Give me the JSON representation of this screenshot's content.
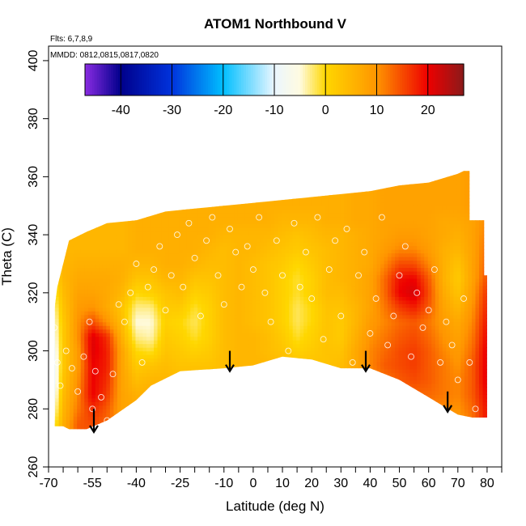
{
  "chart_data": {
    "type": "heatmap",
    "title": "ATOM1 Northbound V",
    "xlabel": "Latitude (deg N)",
    "ylabel": "Theta (C)",
    "annotation_flights": "Flts: 6,7,8,9",
    "annotation_dates": "MMDD: 0812,0815,0817,0820",
    "xlim": [
      -70,
      85
    ],
    "ylim": [
      260,
      405
    ],
    "x_tick_values": [
      -70,
      -55,
      -40,
      -25,
      -10,
      0,
      10,
      20,
      30,
      40,
      50,
      60,
      70,
      80
    ],
    "x_tick_labels": [
      "-70",
      "-55",
      "-40",
      "-25",
      "-10",
      "0",
      "10",
      "20",
      "30",
      "40",
      "50",
      "60",
      "70",
      "80"
    ],
    "x_minor_ticks": [
      -65,
      -60,
      -50,
      -45,
      -35,
      -30,
      -20,
      -15,
      -5,
      5,
      15,
      25,
      35,
      45,
      55,
      65,
      75,
      85
    ],
    "y_tick_values": [
      260,
      280,
      300,
      320,
      340,
      360,
      380,
      400
    ],
    "y_tick_labels": [
      "260",
      "280",
      "300",
      "320",
      "340",
      "360",
      "380",
      "400"
    ],
    "colorbar": {
      "range": [
        -47,
        27
      ],
      "tick_values": [
        -40,
        -30,
        -20,
        -10,
        0,
        10,
        20
      ],
      "tick_labels": [
        "-40",
        "-30",
        "-20",
        "-10",
        "0",
        "10",
        "20"
      ],
      "stops": [
        {
          "v": -47,
          "c": "#8a2be2"
        },
        {
          "v": -40,
          "c": "#00008b"
        },
        {
          "v": -30,
          "c": "#0033dd"
        },
        {
          "v": -20,
          "c": "#00bfff"
        },
        {
          "v": -10,
          "c": "#eaf6ff"
        },
        {
          "v": -5,
          "c": "#fffbe0"
        },
        {
          "v": 0,
          "c": "#ffd700"
        },
        {
          "v": 10,
          "c": "#ff9500"
        },
        {
          "v": 20,
          "c": "#ee0000"
        },
        {
          "v": 27,
          "c": "#8b1a1a"
        }
      ]
    },
    "field_upper_boundary": [
      [
        -68,
        314
      ],
      [
        -67,
        322
      ],
      [
        -65,
        330
      ],
      [
        -63,
        338
      ],
      [
        -57,
        341
      ],
      [
        -50,
        344
      ],
      [
        -40,
        345
      ],
      [
        -30,
        348
      ],
      [
        -20,
        349
      ],
      [
        -10,
        350
      ],
      [
        0,
        351
      ],
      [
        10,
        352
      ],
      [
        20,
        353
      ],
      [
        30,
        354
      ],
      [
        40,
        355
      ],
      [
        50,
        357
      ],
      [
        60,
        358
      ],
      [
        70,
        361
      ],
      [
        72,
        362
      ],
      [
        74,
        362
      ],
      [
        74,
        345
      ],
      [
        79,
        345
      ],
      [
        79,
        326
      ],
      [
        80,
        326
      ],
      [
        80,
        277
      ]
    ],
    "field_lower_boundary": [
      [
        -68,
        274
      ],
      [
        -65,
        274
      ],
      [
        -63,
        273
      ],
      [
        -57,
        273
      ],
      [
        -50,
        276
      ],
      [
        -40,
        283
      ],
      [
        -35,
        288
      ],
      [
        -25,
        293
      ],
      [
        -10,
        294
      ],
      [
        0,
        295
      ],
      [
        10,
        298
      ],
      [
        20,
        297
      ],
      [
        30,
        294
      ],
      [
        40,
        294
      ],
      [
        50,
        290
      ],
      [
        60,
        284
      ],
      [
        65,
        281
      ],
      [
        70,
        278
      ],
      [
        75,
        277
      ],
      [
        80,
        277
      ]
    ],
    "values_grid": {
      "lat": [
        -70,
        -65,
        -60,
        -55,
        -50,
        -45,
        -40,
        -35,
        -30,
        -25,
        -20,
        -15,
        -10,
        -5,
        0,
        5,
        10,
        15,
        20,
        25,
        30,
        35,
        40,
        45,
        50,
        55,
        60,
        65,
        70,
        75,
        80
      ],
      "theta": [
        270,
        275,
        280,
        285,
        290,
        295,
        300,
        305,
        310,
        315,
        320,
        325,
        330,
        335,
        340,
        345,
        350,
        355,
        360
      ],
      "v": [
        [
          -5,
          6,
          14,
          14,
          12,
          9,
          8,
          7,
          6,
          6,
          6,
          4,
          4,
          5,
          5,
          5,
          5,
          5,
          4,
          4,
          5,
          6,
          7,
          8,
          9,
          10,
          10,
          10,
          9,
          12,
          18
        ],
        [
          -8,
          6,
          14,
          15,
          13,
          9,
          8,
          7,
          6,
          6,
          6,
          4,
          4,
          5,
          5,
          5,
          5,
          5,
          4,
          4,
          5,
          6,
          7,
          8,
          9,
          10,
          10,
          10,
          9,
          12,
          19
        ],
        [
          -12,
          5,
          12,
          17,
          14,
          8,
          7,
          6,
          6,
          6,
          5,
          4,
          4,
          5,
          5,
          5,
          5,
          5,
          4,
          4,
          5,
          6,
          8,
          9,
          10,
          11,
          11,
          11,
          10,
          13,
          19
        ],
        [
          -15,
          4,
          11,
          20,
          16,
          8,
          6,
          6,
          5,
          5,
          5,
          4,
          4,
          5,
          5,
          5,
          5,
          5,
          4,
          4,
          5,
          6,
          9,
          11,
          12,
          13,
          13,
          12,
          11,
          14,
          20
        ],
        [
          -16,
          3,
          10,
          20,
          17,
          8,
          4,
          5,
          5,
          4,
          4,
          4,
          4,
          5,
          5,
          5,
          5,
          5,
          4,
          4,
          5,
          7,
          10,
          12,
          14,
          15,
          14,
          12,
          11,
          14,
          21
        ],
        [
          -15,
          2,
          9,
          20,
          18,
          8,
          2,
          3,
          4,
          3,
          3,
          3,
          4,
          5,
          5,
          5,
          4,
          3,
          3,
          3,
          4,
          7,
          11,
          14,
          15,
          16,
          14,
          12,
          10,
          14,
          21
        ],
        [
          -14,
          2,
          9,
          21,
          18,
          8,
          0,
          -1,
          3,
          2,
          1,
          2,
          4,
          5,
          5,
          4,
          3,
          1,
          2,
          3,
          3,
          7,
          11,
          13,
          15,
          16,
          14,
          11,
          9,
          13,
          21
        ],
        [
          -12,
          2,
          10,
          21,
          17,
          6,
          -3,
          -4,
          2,
          1,
          -1,
          1,
          4,
          5,
          5,
          4,
          2,
          -1,
          1,
          3,
          2,
          6,
          10,
          12,
          14,
          15,
          13,
          10,
          8,
          12,
          20
        ],
        [
          -10,
          2,
          10,
          15,
          10,
          4,
          -5,
          -5,
          1,
          0,
          -2,
          1,
          4,
          5,
          4,
          3,
          1,
          -2,
          0,
          3,
          2,
          5,
          9,
          11,
          13,
          14,
          12,
          9,
          7,
          11,
          19
        ],
        [
          -8,
          3,
          9,
          10,
          7,
          3,
          -3,
          -3,
          2,
          2,
          -1,
          1,
          4,
          5,
          4,
          3,
          1,
          -2,
          0,
          3,
          3,
          5,
          8,
          12,
          16,
          18,
          14,
          8,
          5,
          10,
          18
        ],
        [
          -5,
          4,
          8,
          8,
          7,
          5,
          0,
          1,
          3,
          4,
          1,
          2,
          4,
          5,
          4,
          3,
          1,
          -1,
          1,
          4,
          4,
          6,
          8,
          13,
          20,
          22,
          15,
          7,
          3,
          9,
          17
        ],
        [
          -3,
          5,
          7,
          7,
          7,
          6,
          3,
          3,
          5,
          5,
          3,
          3,
          4,
          5,
          4,
          3,
          1,
          -1,
          1,
          4,
          5,
          6,
          8,
          13,
          19,
          20,
          14,
          6,
          2,
          8,
          15
        ],
        [
          -1,
          5,
          6,
          6,
          6,
          6,
          5,
          5,
          6,
          6,
          5,
          4,
          4,
          5,
          4,
          3,
          2,
          0,
          2,
          4,
          5,
          6,
          7,
          11,
          15,
          15,
          11,
          6,
          3,
          8,
          14
        ],
        [
          0,
          5,
          5,
          5,
          5,
          5,
          6,
          6,
          6,
          6,
          6,
          5,
          4,
          5,
          5,
          4,
          3,
          2,
          3,
          4,
          5,
          6,
          7,
          9,
          11,
          11,
          9,
          6,
          5,
          8,
          13
        ],
        [
          1,
          5,
          5,
          5,
          5,
          5,
          6,
          6,
          6,
          6,
          6,
          6,
          5,
          5,
          5,
          5,
          4,
          3,
          4,
          5,
          5,
          6,
          7,
          8,
          9,
          9,
          8,
          7,
          6,
          8,
          12
        ],
        [
          2,
          5,
          5,
          5,
          5,
          5,
          6,
          6,
          6,
          6,
          6,
          6,
          6,
          6,
          6,
          6,
          5,
          5,
          5,
          6,
          6,
          7,
          7,
          8,
          8,
          8,
          8,
          7,
          7,
          8,
          11
        ],
        [
          3,
          5,
          5,
          5,
          5,
          5,
          6,
          6,
          6,
          6,
          6,
          6,
          6,
          6,
          6,
          6,
          6,
          6,
          6,
          6,
          6,
          7,
          7,
          8,
          8,
          8,
          8,
          8,
          8,
          9,
          11
        ],
        [
          3,
          5,
          5,
          5,
          5,
          5,
          6,
          6,
          6,
          6,
          6,
          6,
          6,
          6,
          6,
          6,
          6,
          6,
          6,
          6,
          6,
          7,
          7,
          8,
          8,
          8,
          8,
          8,
          8,
          9,
          11
        ],
        [
          3,
          5,
          5,
          5,
          5,
          5,
          6,
          6,
          6,
          6,
          6,
          6,
          6,
          6,
          6,
          6,
          6,
          6,
          6,
          6,
          6,
          7,
          7,
          8,
          8,
          8,
          8,
          8,
          8,
          9,
          11
        ]
      ]
    },
    "sample_points": [
      [
        -68,
        308
      ],
      [
        -67,
        296
      ],
      [
        -66,
        288
      ],
      [
        -64,
        300
      ],
      [
        -62,
        294
      ],
      [
        -60,
        286
      ],
      [
        -58,
        298
      ],
      [
        -56,
        310
      ],
      [
        -55,
        280
      ],
      [
        -54,
        293
      ],
      [
        -52,
        284
      ],
      [
        -50,
        276
      ],
      [
        -48,
        292
      ],
      [
        -46,
        316
      ],
      [
        -44,
        310
      ],
      [
        -42,
        320
      ],
      [
        -40,
        330
      ],
      [
        -38,
        296
      ],
      [
        -36,
        322
      ],
      [
        -34,
        328
      ],
      [
        -32,
        336
      ],
      [
        -30,
        314
      ],
      [
        -28,
        326
      ],
      [
        -26,
        340
      ],
      [
        -24,
        322
      ],
      [
        -22,
        344
      ],
      [
        -20,
        332
      ],
      [
        -18,
        312
      ],
      [
        -16,
        338
      ],
      [
        -14,
        346
      ],
      [
        -12,
        326
      ],
      [
        -10,
        316
      ],
      [
        -8,
        342
      ],
      [
        -6,
        334
      ],
      [
        -4,
        322
      ],
      [
        -2,
        336
      ],
      [
        0,
        328
      ],
      [
        2,
        346
      ],
      [
        4,
        320
      ],
      [
        6,
        310
      ],
      [
        8,
        338
      ],
      [
        10,
        326
      ],
      [
        12,
        300
      ],
      [
        14,
        344
      ],
      [
        16,
        322
      ],
      [
        18,
        334
      ],
      [
        20,
        318
      ],
      [
        22,
        346
      ],
      [
        24,
        304
      ],
      [
        26,
        328
      ],
      [
        28,
        338
      ],
      [
        30,
        312
      ],
      [
        32,
        342
      ],
      [
        34,
        296
      ],
      [
        36,
        326
      ],
      [
        38,
        334
      ],
      [
        40,
        306
      ],
      [
        42,
        318
      ],
      [
        44,
        346
      ],
      [
        46,
        302
      ],
      [
        48,
        312
      ],
      [
        50,
        326
      ],
      [
        52,
        336
      ],
      [
        54,
        298
      ],
      [
        56,
        320
      ],
      [
        58,
        308
      ],
      [
        60,
        314
      ],
      [
        62,
        328
      ],
      [
        64,
        296
      ],
      [
        66,
        310
      ],
      [
        68,
        302
      ],
      [
        70,
        290
      ],
      [
        72,
        318
      ],
      [
        74,
        296
      ],
      [
        76,
        280
      ]
    ],
    "arrows": [
      {
        "x": -54.5,
        "y_from": 280,
        "y_to": 272
      },
      {
        "x": -8,
        "y_from": 300,
        "y_to": 293
      },
      {
        "x": 38.5,
        "y_from": 300,
        "y_to": 293
      },
      {
        "x": 66.5,
        "y_from": 286,
        "y_to": 279
      }
    ],
    "grid": false,
    "legend": "colorbar-top-inside"
  }
}
